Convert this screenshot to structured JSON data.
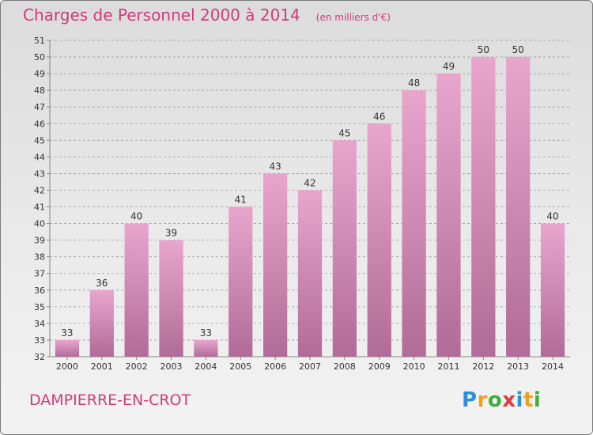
{
  "header": {
    "title": "Charges de Personnel 2000 à 2014",
    "subtitle": "(en milliers d'€)"
  },
  "footer": {
    "commune": "DAMPIERRE-EN-CROT",
    "logo": "Proxiti"
  },
  "colors": {
    "title": "#d13a7a",
    "bar_light": "#e8a6cd",
    "bar_dark": "#b06c96",
    "logo_letters": [
      "#2f8fd8",
      "#f0a020",
      "#3cae3a",
      "#e03a3a",
      "#2f8fd8",
      "#f0a020",
      "#3cae3a"
    ]
  },
  "chart_data": {
    "type": "bar",
    "title": "Charges de Personnel 2000 à 2014",
    "subtitle": "(en milliers d'€)",
    "xlabel": "",
    "ylabel": "",
    "categories": [
      "2000",
      "2001",
      "2002",
      "2003",
      "2004",
      "2005",
      "2006",
      "2007",
      "2008",
      "2009",
      "2010",
      "2011",
      "2012",
      "2013",
      "2014"
    ],
    "values": [
      33,
      36,
      40,
      39,
      33,
      41,
      43,
      42,
      45,
      46,
      48,
      49,
      50,
      50,
      40
    ],
    "ylim": [
      32,
      51
    ],
    "yticks": [
      32,
      33,
      34,
      35,
      36,
      37,
      38,
      39,
      40,
      41,
      42,
      43,
      44,
      45,
      46,
      47,
      48,
      49,
      50,
      51
    ],
    "grid": "horizontal dashed",
    "legend": "none"
  }
}
